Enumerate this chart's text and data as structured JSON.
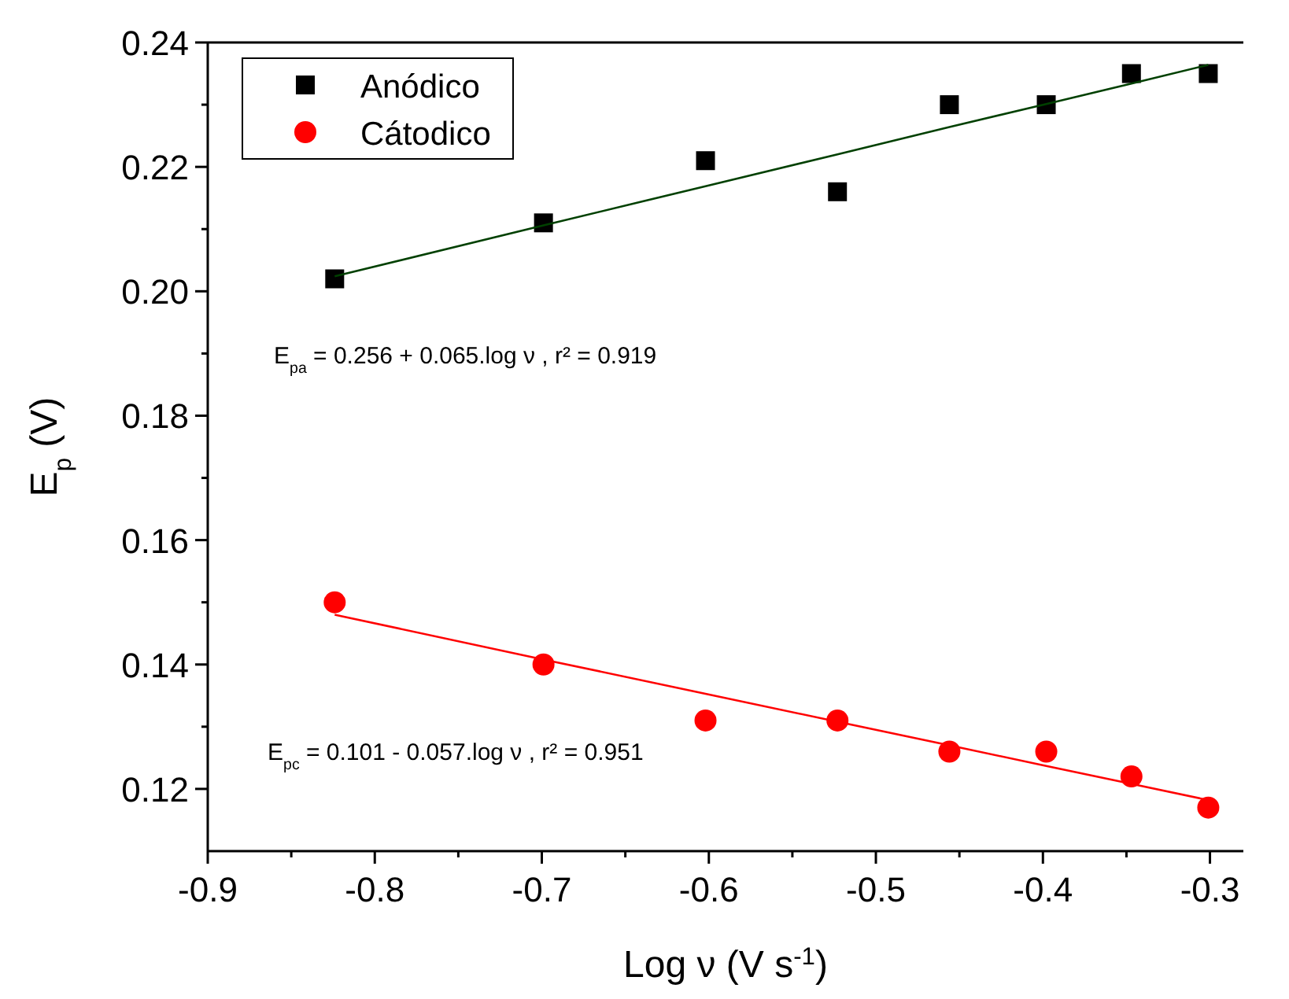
{
  "chart_data": {
    "type": "scatter",
    "xlabel": "Log ν (V s$^{-1}$)",
    "ylabel": "E$_{p}$ (V)",
    "x": [
      -0.824,
      -0.699,
      -0.602,
      -0.523,
      -0.456,
      -0.398,
      -0.347,
      -0.301
    ],
    "series": [
      {
        "name": "Anódico",
        "color": "#000000",
        "marker": "square",
        "values": [
          0.202,
          0.211,
          0.221,
          0.216,
          0.23,
          0.23,
          0.235,
          0.235
        ]
      },
      {
        "name": "Cátodico",
        "color": "#ff0000",
        "marker": "circle",
        "values": [
          0.15,
          0.14,
          0.131,
          0.131,
          0.126,
          0.126,
          0.122,
          0.117
        ]
      },
      {
        "type": "line",
        "color": "#004000",
        "values": [
          0.2024,
          0.2106,
          0.2169,
          0.222,
          0.2264,
          0.2301,
          0.2334,
          0.2364
        ]
      },
      {
        "type": "line",
        "color": "#ff0000",
        "values": [
          0.148,
          0.1408,
          0.1353,
          0.1308,
          0.127,
          0.1237,
          0.1208,
          0.1182
        ]
      }
    ],
    "xlim": [
      -0.9,
      -0.28
    ],
    "xticks": [
      -0.9,
      -0.8,
      -0.7,
      -0.6,
      -0.5,
      -0.4,
      -0.3
    ],
    "ylim": [
      0.11,
      0.24
    ],
    "yticks": [
      {
        "value": 0.12,
        "label": "0.12"
      },
      {
        "value": 0.14,
        "label": "0.14"
      },
      {
        "value": 0.16,
        "label": "0.16"
      },
      {
        "value": 0.18,
        "label": "0.18"
      },
      {
        "value": 0.2,
        "label": "0.20"
      },
      {
        "value": 0.22,
        "label": "0.22"
      },
      {
        "value": 0.24,
        "label": "0.24"
      }
    ],
    "annotations": [
      "E$_{pa}$ = 0.256 + 0.065.log ν ,  r² = 0.919",
      "E$_{pc}$ = 0.101 - 0.057.log ν ,  r² = 0.951"
    ],
    "legend": "top left",
    "grid": false
  }
}
